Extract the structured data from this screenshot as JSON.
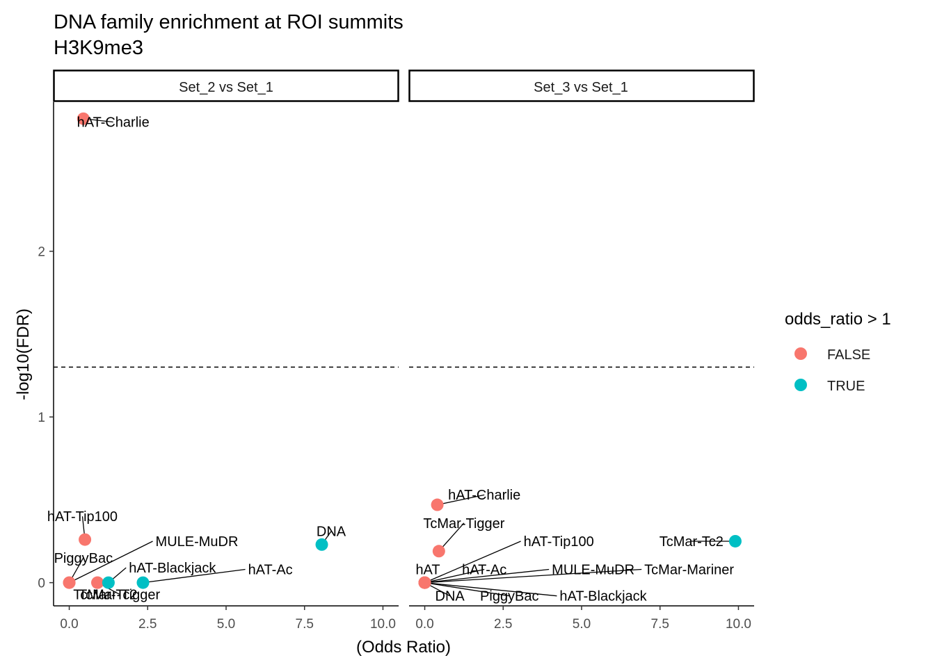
{
  "chart_data": {
    "type": "scatter",
    "title": "DNA family enrichment at ROI summits",
    "subtitle": "H3K9me3",
    "xlabel": "(Odds Ratio)",
    "ylabel": "-log10(FDR)",
    "xlim": [
      -0.5,
      10.5
    ],
    "ylim": [
      -0.14,
      2.9
    ],
    "x_ticks": [
      0.0,
      2.5,
      5.0,
      7.5,
      10.0
    ],
    "x_tick_labels": [
      "0.0",
      "2.5",
      "5.0",
      "7.5",
      "10.0"
    ],
    "y_ticks": [
      0,
      1,
      2
    ],
    "y_tick_labels": [
      "0",
      "1",
      "2"
    ],
    "threshold_y": 1.30103,
    "legend": {
      "title": "odds_ratio > 1",
      "entries": [
        {
          "label": "FALSE",
          "color": "#F8766D"
        },
        {
          "label": "TRUE",
          "color": "#00BFC4"
        }
      ]
    },
    "panels": [
      {
        "strip": "Set_2 vs Set_1",
        "points": [
          {
            "label": "hAT-Charlie",
            "x": 0.45,
            "y": 2.8,
            "or_gt_1": false,
            "lx": 1.4,
            "ly": 2.78,
            "anchor": "middle"
          },
          {
            "label": "hAT-Tip100",
            "x": 0.5,
            "y": 0.26,
            "or_gt_1": false,
            "lx": 0.42,
            "ly": 0.4,
            "anchor": "middle"
          },
          {
            "label": "PiggyBac",
            "x": 0.0,
            "y": 0.0,
            "or_gt_1": false,
            "lx": 0.45,
            "ly": 0.15,
            "anchor": "middle"
          },
          {
            "label": "MULE-MuDR",
            "x": 0.0,
            "y": 0.0,
            "or_gt_1": false,
            "lx": 2.75,
            "ly": 0.25,
            "anchor": "start"
          },
          {
            "label": "TcMar-Tc2",
            "x": 0.9,
            "y": 0.0,
            "or_gt_1": false,
            "lx": 1.15,
            "ly": -0.07,
            "anchor": "middle"
          },
          {
            "label": "TcMar-Tigger",
            "x": 0.9,
            "y": 0.0,
            "or_gt_1": false,
            "lx": 1.6,
            "ly": -0.07,
            "anchor": "middle"
          },
          {
            "label": "hAT-Blackjack",
            "x": 1.25,
            "y": 0.0,
            "or_gt_1": true,
            "lx": 1.9,
            "ly": 0.09,
            "anchor": "start"
          },
          {
            "label": "hAT-Ac",
            "x": 2.35,
            "y": 0.0,
            "or_gt_1": true,
            "lx": 5.7,
            "ly": 0.08,
            "anchor": "start"
          },
          {
            "label": "DNA",
            "x": 8.05,
            "y": 0.23,
            "or_gt_1": true,
            "lx": 8.35,
            "ly": 0.31,
            "anchor": "middle"
          }
        ]
      },
      {
        "strip": "Set_3 vs Set_1",
        "points": [
          {
            "label": "hAT-Charlie",
            "x": 0.4,
            "y": 0.47,
            "or_gt_1": false,
            "lx": 1.9,
            "ly": 0.53,
            "anchor": "middle"
          },
          {
            "label": "TcMar-Tigger",
            "x": 0.45,
            "y": 0.19,
            "or_gt_1": false,
            "lx": 1.25,
            "ly": 0.36,
            "anchor": "middle"
          },
          {
            "label": "hAT-Tip100",
            "x": 0.0,
            "y": 0.0,
            "or_gt_1": false,
            "lx": 3.15,
            "ly": 0.25,
            "anchor": "start"
          },
          {
            "label": "hAT",
            "x": 0.0,
            "y": 0.0,
            "or_gt_1": false,
            "lx": 0.1,
            "ly": 0.08,
            "anchor": "middle"
          },
          {
            "label": "hAT-Ac",
            "x": 0.0,
            "y": 0.0,
            "or_gt_1": false,
            "lx": 1.9,
            "ly": 0.08,
            "anchor": "middle"
          },
          {
            "label": "MULE-MuDR",
            "x": 0.0,
            "y": 0.0,
            "or_gt_1": false,
            "lx": 4.05,
            "ly": 0.08,
            "anchor": "start"
          },
          {
            "label": "TcMar-Mariner",
            "x": 0.0,
            "y": 0.0,
            "or_gt_1": false,
            "lx": 7.0,
            "ly": 0.08,
            "anchor": "start"
          },
          {
            "label": "DNA",
            "x": 0.0,
            "y": 0.0,
            "or_gt_1": false,
            "lx": 0.8,
            "ly": -0.08,
            "anchor": "middle"
          },
          {
            "label": "PiggyBac",
            "x": 0.0,
            "y": 0.0,
            "or_gt_1": false,
            "lx": 2.7,
            "ly": -0.08,
            "anchor": "middle"
          },
          {
            "label": "hAT-Blackjack",
            "x": 0.0,
            "y": 0.0,
            "or_gt_1": false,
            "lx": 4.3,
            "ly": -0.08,
            "anchor": "start"
          },
          {
            "label": "TcMar-Tc2",
            "x": 9.9,
            "y": 0.25,
            "or_gt_1": true,
            "lx": 8.5,
            "ly": 0.25,
            "anchor": "middle"
          }
        ]
      }
    ]
  }
}
